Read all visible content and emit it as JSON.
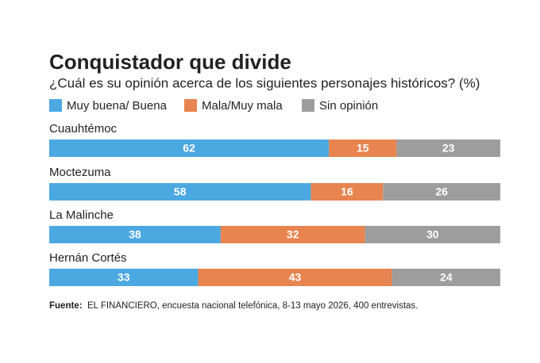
{
  "chart_data": {
    "type": "stacked-bar-horizontal",
    "title": "Conquistador que divide",
    "subtitle": "¿Cuál es su opinión acerca de los siguientes personajes históricos? (%)",
    "categories": [
      "Cuauhtémoc",
      "Moctezuma",
      "La Malinche",
      "Hernán Cortés"
    ],
    "series": [
      {
        "name": "Muy buena/ Buena",
        "color": "#4ba8e1",
        "values": [
          62,
          58,
          38,
          33
        ]
      },
      {
        "name": "Mala/Muy mala",
        "color": "#e8844f",
        "values": [
          15,
          16,
          32,
          43
        ]
      },
      {
        "name": "Sin opinión",
        "color": "#9d9d9d",
        "values": [
          23,
          26,
          30,
          24
        ]
      }
    ],
    "source_label": "Fuente:",
    "source": "EL FINANCIERO, encuesta nacional telefónica, 8-13 mayo 2026, 400 entrevistas."
  }
}
